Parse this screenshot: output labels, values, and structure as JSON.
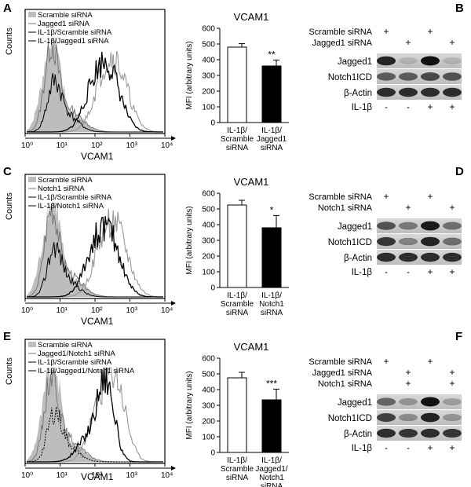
{
  "panels": [
    {
      "hist": {
        "letter": "A",
        "legend": [
          "Scramble siRNA",
          "Jagged1 siRNA",
          "IL-1β/Scramble siRNA",
          "IL-1β/Jagged1 siRNA"
        ],
        "xlabel": "VCAM1",
        "ylabel": "Counts",
        "xticks": [
          "10⁰",
          "10¹",
          "10²",
          "10³",
          "10⁴"
        ]
      },
      "blot": {
        "letter": "B",
        "rows": [
          "Scramble siRNA",
          "Jagged1 siRNA"
        ],
        "signs": [
          [
            "+",
            "",
            "+",
            ""
          ],
          [
            "",
            "+",
            "",
            "+"
          ]
        ],
        "bands": [
          "Jagged1",
          "Notch1ICD",
          "β-Actin"
        ],
        "il1b_label": "IL-1β",
        "il1b_signs": [
          "-",
          "-",
          "+",
          "+"
        ]
      }
    },
    {
      "hist": {
        "letter": "C",
        "legend": [
          "Scramble siRNA",
          "Notch1 siRNA",
          "IL-1β/Scramble siRNA",
          "IL-1β/Notch1 siRNA"
        ],
        "xlabel": "VCAM1",
        "ylabel": "Counts",
        "xticks": [
          "10⁰",
          "10¹",
          "10²",
          "10³",
          "10⁴"
        ]
      },
      "blot": {
        "letter": "D",
        "rows": [
          "Scramble siRNA",
          "Notch1 siRNA"
        ],
        "signs": [
          [
            "+",
            "",
            "+",
            ""
          ],
          [
            "",
            "+",
            "",
            "+"
          ]
        ],
        "bands": [
          "Jagged1",
          "Notch1ICD",
          "β-Actin"
        ],
        "il1b_label": "IL-1β",
        "il1b_signs": [
          "-",
          "-",
          "+",
          "+"
        ]
      }
    },
    {
      "hist": {
        "letter": "E",
        "legend": [
          "Scramble siRNA",
          "Jagged1/Notch1 siRNA",
          "IL-1β/Scramble siRNA",
          "IL-1β/Jagged1/Notch1 siRNA"
        ],
        "xlabel": "VCAM1",
        "ylabel": "Counts",
        "xticks": [
          "10⁰",
          "10¹",
          "10²",
          "10³",
          "10⁴"
        ]
      },
      "blot": {
        "letter": "F",
        "rows": [
          "Scramble siRNA",
          "Jagged1 siRNA",
          "Notch1 siRNA"
        ],
        "signs": [
          [
            "+",
            "",
            "+",
            ""
          ],
          [
            "",
            "+",
            "",
            "+"
          ],
          [
            "",
            "+",
            "",
            "+"
          ]
        ],
        "bands": [
          "Jagged1",
          "Notch1ICD",
          "β-Actin"
        ],
        "il1b_label": "IL-1β",
        "il1b_signs": [
          "-",
          "-",
          "+",
          "+"
        ]
      }
    }
  ],
  "chart_data": [
    {
      "type": "bar",
      "title": "VCAM1",
      "ylabel": "MFI (arbitrary units)",
      "ylim": [
        0,
        600
      ],
      "yticks": [
        0,
        100,
        200,
        300,
        400,
        500,
        600
      ],
      "categories": [
        [
          "IL-1β/",
          "Scramble",
          "siRNA"
        ],
        [
          "IL-1β/",
          "Jagged1",
          "siRNA"
        ]
      ],
      "values": [
        480,
        360
      ],
      "errors": [
        22,
        38
      ],
      "fills": [
        "#ffffff",
        "#000000"
      ],
      "significance": [
        "",
        "**"
      ]
    },
    {
      "type": "bar",
      "title": "VCAM1",
      "ylabel": "MFI (arbitrary units)",
      "ylim": [
        0,
        600
      ],
      "yticks": [
        0,
        100,
        200,
        300,
        400,
        500,
        600
      ],
      "categories": [
        [
          "IL-1β/",
          "Scramble",
          "siRNA"
        ],
        [
          "IL-1β/",
          "Notch1",
          "siRNA"
        ]
      ],
      "values": [
        525,
        380
      ],
      "errors": [
        30,
        78
      ],
      "fills": [
        "#ffffff",
        "#000000"
      ],
      "significance": [
        "",
        "*"
      ]
    },
    {
      "type": "bar",
      "title": "VCAM1",
      "ylabel": "MFI (arbitrary units)",
      "ylim": [
        0,
        600
      ],
      "yticks": [
        0,
        100,
        200,
        300,
        400,
        500,
        600
      ],
      "categories": [
        [
          "IL-1β/",
          "Scramble",
          "siRNA"
        ],
        [
          "IL-1β/",
          "Jagged1/",
          "Notch1",
          "siRNA"
        ]
      ],
      "values": [
        475,
        335
      ],
      "errors": [
        35,
        68
      ],
      "fills": [
        "#ffffff",
        "#000000"
      ],
      "significance": [
        "",
        "***"
      ]
    }
  ]
}
